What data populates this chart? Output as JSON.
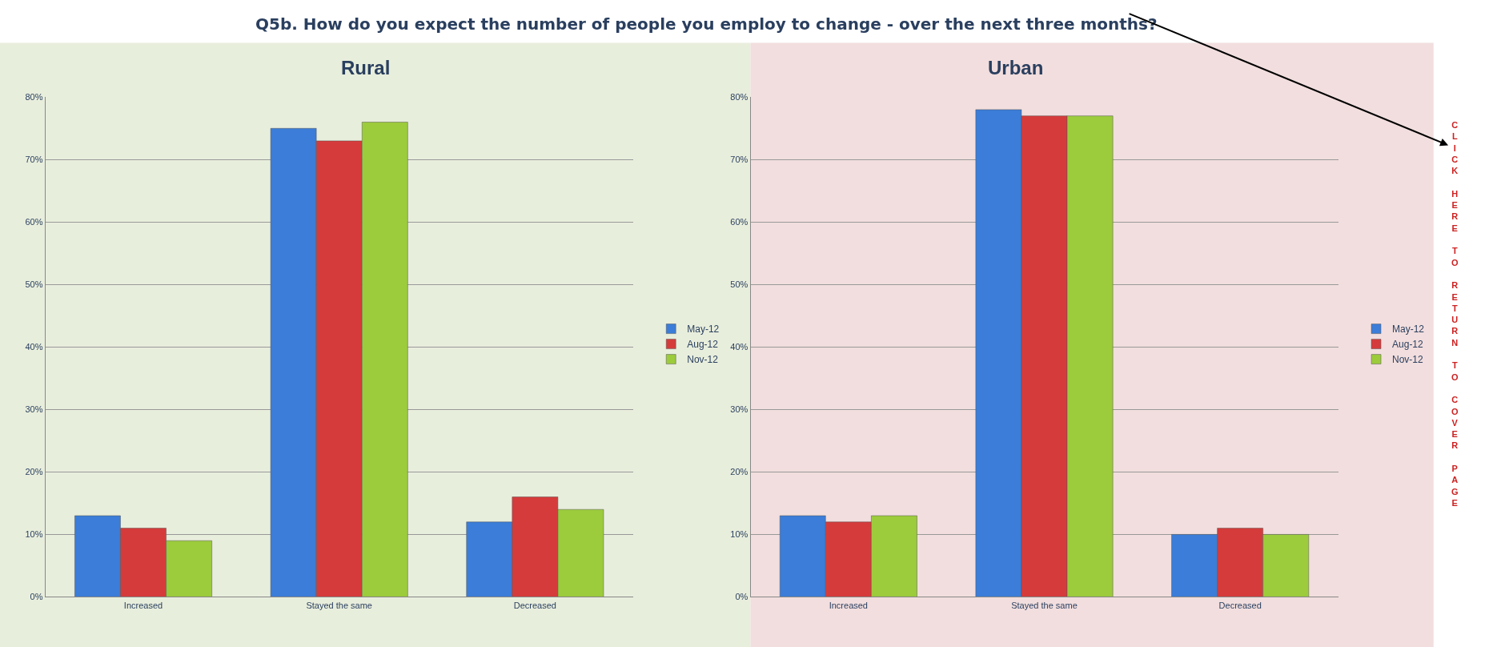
{
  "chart_data": [
    {
      "type": "bar",
      "title": "Rural",
      "annotations": [
        "Q5b. How do you expect the number of people you employ to change - over the next three months?"
      ],
      "categories": [
        "Increased",
        "Stayed the same",
        "Decreased"
      ],
      "series": [
        {
          "name": "May-12",
          "color": "#3b7dd8",
          "values": [
            13,
            75,
            12
          ]
        },
        {
          "name": "Aug-12",
          "color": "#d63b3b",
          "values": [
            11,
            73,
            16
          ]
        },
        {
          "name": "Nov-12",
          "color": "#9ccb3c",
          "values": [
            9,
            76,
            14
          ]
        }
      ],
      "ylim": [
        0,
        80
      ],
      "yticks": [
        {
          "value": 0,
          "label": "0%"
        },
        {
          "value": 10,
          "label": "10%"
        },
        {
          "value": 20,
          "label": "20%"
        },
        {
          "value": 30,
          "label": "30%"
        },
        {
          "value": 40,
          "label": "40%"
        },
        {
          "value": 50,
          "label": "50%"
        },
        {
          "value": 60,
          "label": "60%"
        },
        {
          "value": 70,
          "label": "70%"
        },
        {
          "value": 80,
          "label": "80%"
        }
      ],
      "grid": "y",
      "legend": "right"
    },
    {
      "type": "bar",
      "title": "Urban",
      "annotations": [
        "CLICK HERE TO RETURN TO COVER PAGE"
      ],
      "categories": [
        "Increased",
        "Stayed the same",
        "Decreased"
      ],
      "series": [
        {
          "name": "May-12",
          "color": "#3b7dd8",
          "values": [
            13,
            78,
            10
          ]
        },
        {
          "name": "Aug-12",
          "color": "#d63b3b",
          "values": [
            12,
            77,
            11
          ]
        },
        {
          "name": "Nov-12",
          "color": "#9ccb3c",
          "values": [
            13,
            77,
            10
          ]
        }
      ],
      "ylim": [
        0,
        80
      ],
      "yticks": [
        {
          "value": 0,
          "label": "0%"
        },
        {
          "value": 10,
          "label": "10%"
        },
        {
          "value": 20,
          "label": "20%"
        },
        {
          "value": 30,
          "label": "30%"
        },
        {
          "value": 40,
          "label": "40%"
        },
        {
          "value": 50,
          "label": "50%"
        },
        {
          "value": 60,
          "label": "60%"
        },
        {
          "value": 70,
          "label": "70%"
        },
        {
          "value": 80,
          "label": "80%"
        }
      ],
      "grid": "y",
      "legend": "right"
    }
  ]
}
